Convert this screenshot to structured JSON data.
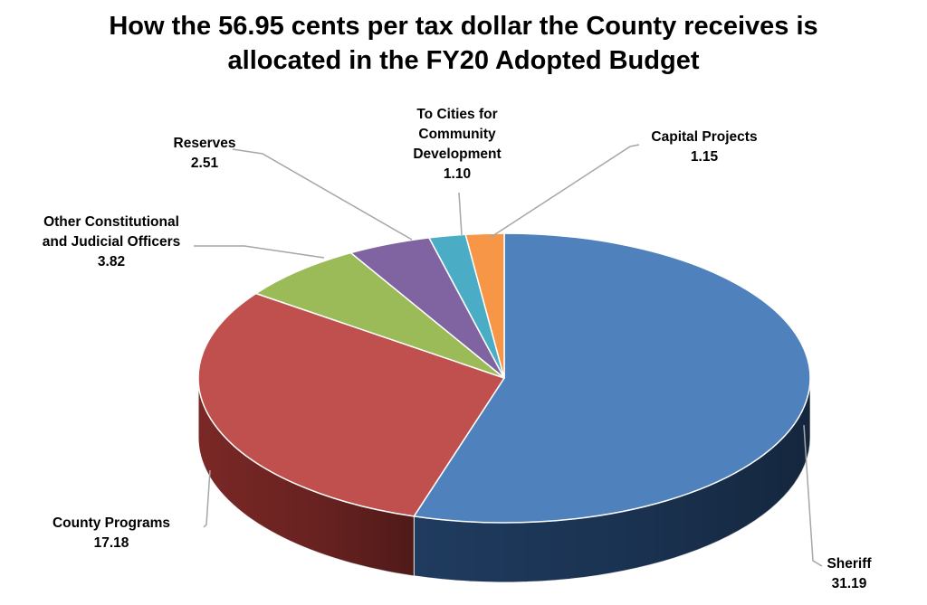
{
  "chart_data": {
    "type": "pie",
    "title": [
      "How the 56.95 cents per tax dollar the County receives is",
      "allocated in the FY20 Adopted Budget"
    ],
    "slices": [
      {
        "label": [
          "Sheriff"
        ],
        "value": 31.19,
        "value_text": "31.19",
        "color": "#4f81bd",
        "side_color": "#1f3b5f"
      },
      {
        "label": [
          "County Programs"
        ],
        "value": 17.18,
        "value_text": "17.18",
        "color": "#c0504d",
        "side_color": "#7a2826"
      },
      {
        "label": [
          "Other Constitutional",
          "and Judicial Officers"
        ],
        "value": 3.82,
        "value_text": "3.82",
        "color": "#9bbb59",
        "side_color": "#5a7030"
      },
      {
        "label": [
          "Reserves"
        ],
        "value": 2.51,
        "value_text": "2.51",
        "color": "#8064a2",
        "side_color": "#4a3865"
      },
      {
        "label": [
          "To Cities for",
          "Community",
          "Development"
        ],
        "value": 1.1,
        "value_text": "1.10",
        "color": "#4bacc6",
        "side_color": "#256a7c"
      },
      {
        "label": [
          "Capital Projects"
        ],
        "value": 1.15,
        "value_text": "1.15",
        "color": "#f79646",
        "side_color": "#a85a1c"
      }
    ]
  }
}
